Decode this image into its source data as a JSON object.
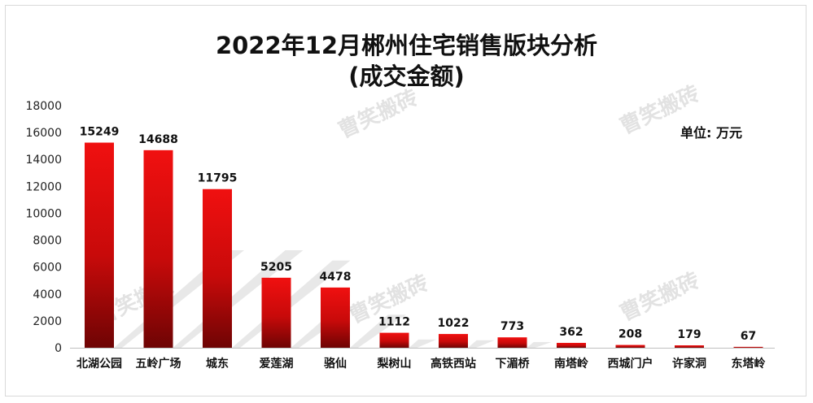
{
  "chart_data": {
    "type": "bar",
    "title_line1": "2022年12月郴州住宅销售版块分析",
    "title_line2": "(成交金额)",
    "unit_label": "单位: 万元",
    "categories": [
      "北湖公园",
      "五岭广场",
      "城东",
      "爱莲湖",
      "骆仙",
      "梨树山",
      "高铁西站",
      "下湄桥",
      "南塔岭",
      "西城门户",
      "许家洞",
      "东塔岭"
    ],
    "values": [
      15249,
      14688,
      11795,
      5205,
      4478,
      1112,
      1022,
      773,
      362,
      208,
      179,
      67
    ],
    "ylim": [
      0,
      18000
    ],
    "yticks": [
      0,
      2000,
      4000,
      6000,
      8000,
      10000,
      12000,
      14000,
      16000,
      18000
    ],
    "grid": false,
    "colors": {
      "bar_top": "#f01010",
      "bar_bottom": "#6e0404",
      "shadow": "#bdbdbd"
    }
  },
  "watermark": "曹笑搬砖"
}
